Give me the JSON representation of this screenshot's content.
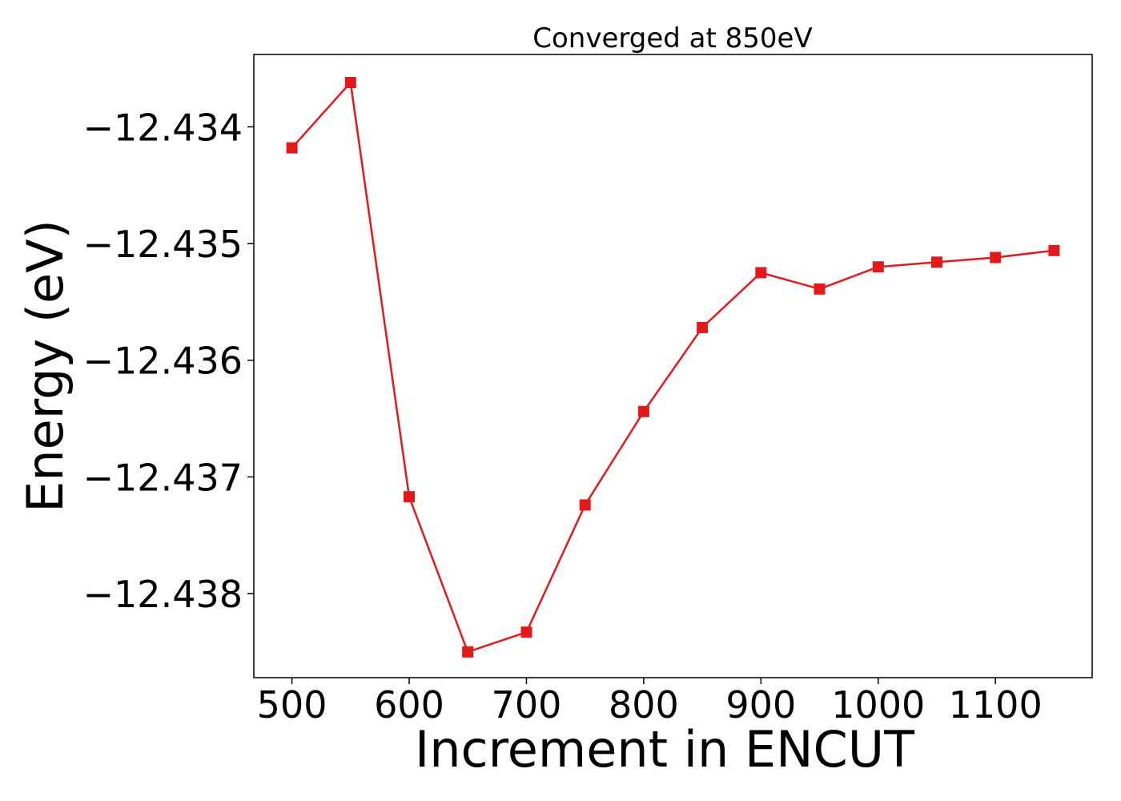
{
  "chart_data": {
    "type": "line",
    "title": "Converged at 850eV",
    "xlabel": "Increment in ENCUT",
    "ylabel": "Energy (eV)",
    "xlim": [
      467.5,
      1182.5
    ],
    "ylim": [
      -12.43872,
      -12.43338
    ],
    "xticks": [
      500,
      600,
      700,
      800,
      900,
      1000,
      1100
    ],
    "xtick_labels": [
      "500",
      "600",
      "700",
      "800",
      "900",
      "1000",
      "1100"
    ],
    "yticks": [
      -12.434,
      -12.435,
      -12.436,
      -12.437,
      -12.438
    ],
    "ytick_labels": [
      "−12.434",
      "−12.435",
      "−12.436",
      "−12.437",
      "−12.438"
    ],
    "grid": false,
    "legend": "none",
    "series": [
      {
        "color": "#e31a1c",
        "marker": "square",
        "x": [
          500,
          550,
          600,
          650,
          700,
          750,
          800,
          850,
          900,
          950,
          1000,
          1050,
          1100,
          1150
        ],
        "y": [
          -12.43418,
          -12.43362,
          -12.43717,
          -12.4385,
          -12.43833,
          -12.43724,
          -12.43644,
          -12.43572,
          -12.43525,
          -12.43539,
          -12.4352,
          -12.43516,
          -12.43512,
          -12.43506
        ]
      }
    ]
  }
}
